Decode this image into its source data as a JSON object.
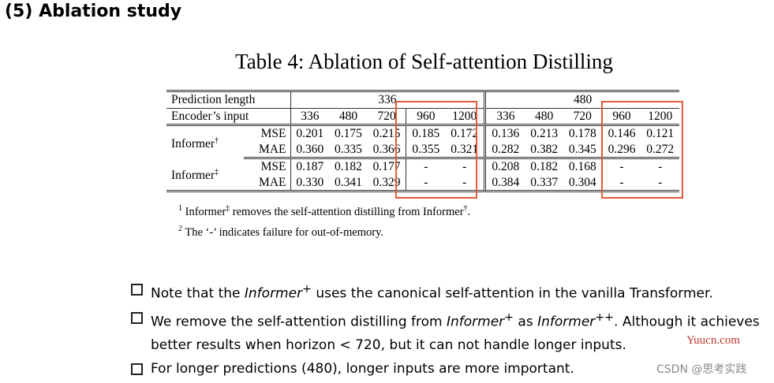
{
  "slide": {
    "title": "(5) Ablation study"
  },
  "table": {
    "caption": "Table 4: Ablation of Self-attention Distilling",
    "header_row1_label": "Prediction length",
    "header_row2_label": "Encoder’s input",
    "groups": [
      "336",
      "480"
    ],
    "encoder_inputs": [
      "336",
      "480",
      "720",
      "960",
      "1200",
      "336",
      "480",
      "720",
      "960",
      "1200"
    ],
    "models": [
      {
        "name": "Informer",
        "mark": "†",
        "rows": [
          {
            "metric": "MSE",
            "values": [
              "0.201",
              "0.175",
              "0.215",
              "0.185",
              "0.172",
              "0.136",
              "0.213",
              "0.178",
              "0.146",
              "0.121"
            ]
          },
          {
            "metric": "MAE",
            "values": [
              "0.360",
              "0.335",
              "0.366",
              "0.355",
              "0.321",
              "0.282",
              "0.382",
              "0.345",
              "0.296",
              "0.272"
            ]
          }
        ]
      },
      {
        "name": "Informer",
        "mark": "‡",
        "rows": [
          {
            "metric": "MSE",
            "values": [
              "0.187",
              "0.182",
              "0.177",
              "-",
              "-",
              "0.208",
              "0.182",
              "0.168",
              "-",
              "-"
            ]
          },
          {
            "metric": "MAE",
            "values": [
              "0.330",
              "0.341",
              "0.329",
              "-",
              "-",
              "0.384",
              "0.337",
              "0.304",
              "-",
              "-"
            ]
          }
        ]
      }
    ],
    "highlight_color": "#e25b3a"
  },
  "footnotes": [
    {
      "num": "1",
      "text_a": "Informer",
      "mark_a": "‡",
      "text_b": " removes the self-attention distilling from Informer",
      "mark_b": "†",
      "text_c": "."
    },
    {
      "num": "2",
      "text": "The ‘-’ indicates failure for out-of-memory."
    }
  ],
  "bullets": [
    {
      "pre": "Note that the ",
      "em": "Informer",
      "em_sup": "+",
      "post": " uses the canonical self-attention in the vanilla Transformer."
    },
    {
      "pre": "We remove the self-attention distilling from ",
      "em": "Informer",
      "em_sup": "+",
      "mid": " as ",
      "em2": "Informer",
      "em2_sup": "++",
      "post": ". Although it achieves better results when horizon < 720, but it can not handle longer inputs."
    },
    {
      "pre": "For longer predictions (480), longer inputs are more important."
    }
  ],
  "watermarks": {
    "url": "Yuucn.com",
    "csdn": "CSDN @思考实践"
  }
}
